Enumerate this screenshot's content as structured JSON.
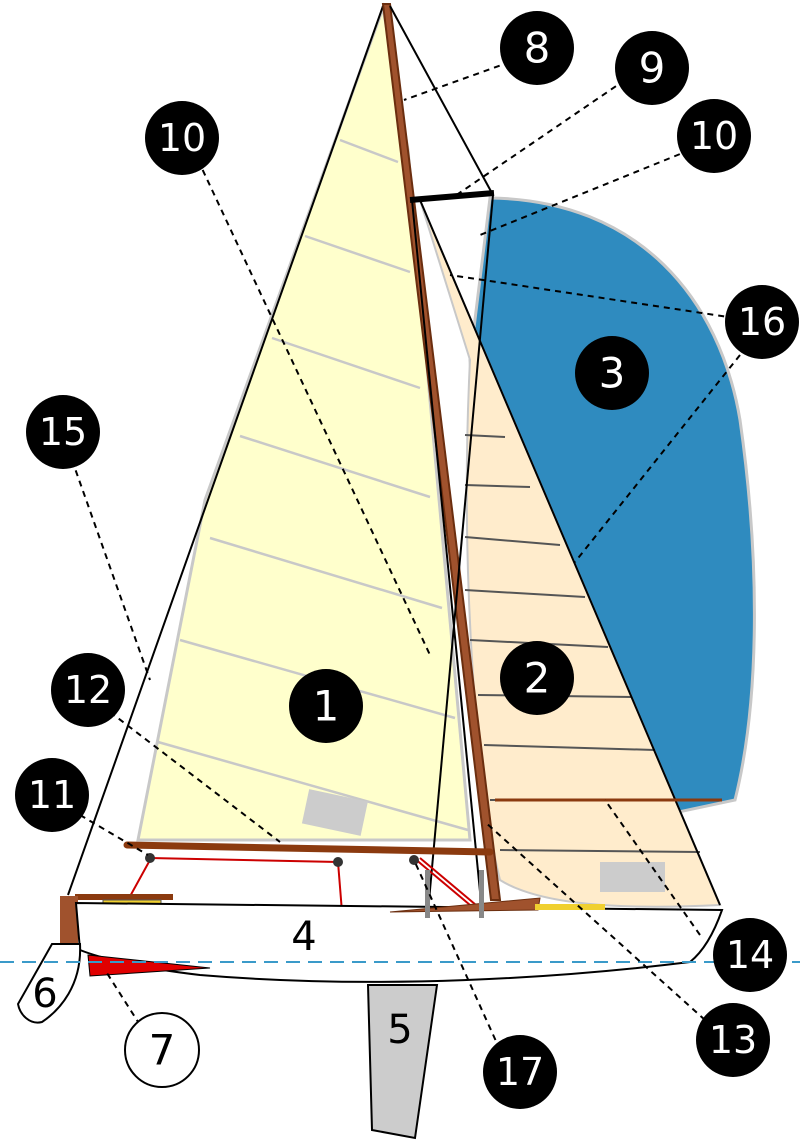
{
  "labels": {
    "mainsail": "1",
    "jib": "2",
    "spinnaker": "3",
    "hull": "4",
    "keel": "5",
    "rudder": "6",
    "skeg": "7",
    "mast": "8",
    "spreader": "9",
    "shroud_upper": "10",
    "shroud_lower": "10",
    "sheet": "11",
    "boom": "12",
    "stay": "13",
    "spinnaker_pole": "14",
    "backstay": "15",
    "forestay": "16",
    "boom_vang": "17"
  },
  "colors": {
    "mainsail": "#ffffcc",
    "jib": "#ffeccc",
    "spinnaker": "#2f8bbf",
    "spar": "#a0522d",
    "boom": "#8b3a0f",
    "rigging_red": "#cc0000",
    "waterline": "#3a9ac9",
    "keel": "#cccccc",
    "skeg": "#e00000"
  }
}
